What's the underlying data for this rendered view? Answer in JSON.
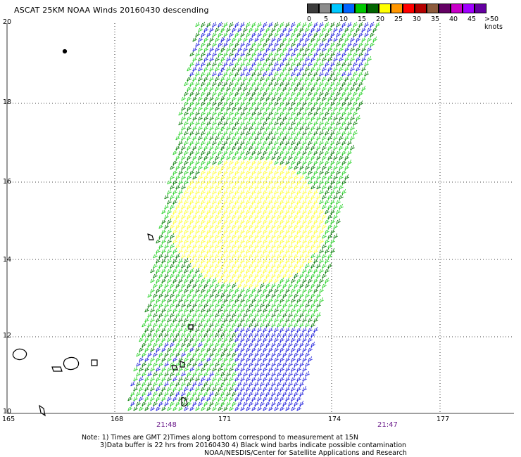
{
  "title": "ASCAT 25KM NOAA Winds 20160430 descending",
  "legend": {
    "labels": [
      "0",
      "5",
      "10",
      "15",
      "20",
      "25",
      "30",
      "35",
      "40",
      "45",
      ">50 knots"
    ],
    "colors": [
      "#3c3c3c",
      "#8c8c8c",
      "#00c8ff",
      "#0064ff",
      "#00c800",
      "#006400",
      "#ffff00",
      "#ff9600",
      "#ff0000",
      "#b40000",
      "#8c5a3c",
      "#640064",
      "#c800c8",
      "#a000ff",
      "#6400a0"
    ]
  },
  "axes": {
    "lon_labels": [
      "165",
      "168",
      "171",
      "174",
      "177"
    ],
    "lat_labels": [
      "20",
      "18",
      "16",
      "14",
      "12",
      "10"
    ]
  },
  "times": [
    "21:48",
    "21:47"
  ],
  "notes": [
    "Note: 1) Times are GMT 2)Times along bottom correspond to measurement at 15N",
    "3)Data buffer is 22 hrs from 20160430 4) Black wind barbs indicate possible contamination",
    "NOAA/NESDIS/Center for Satellite Applications and Research"
  ]
}
